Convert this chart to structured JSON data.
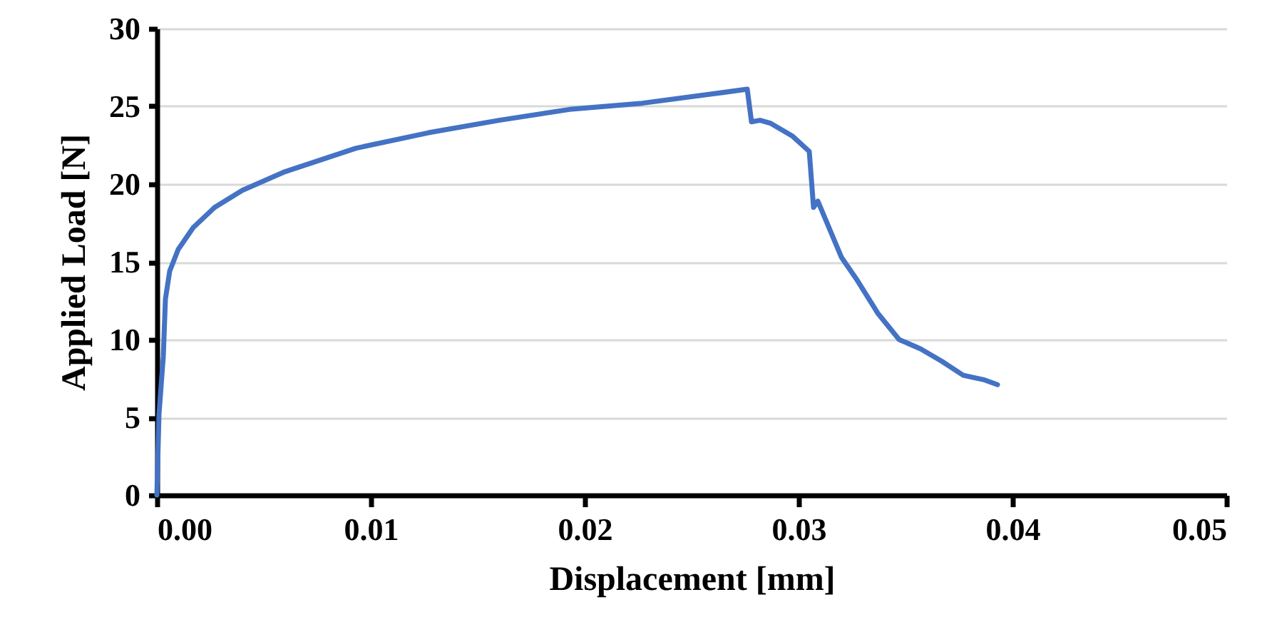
{
  "chart_data": {
    "type": "line",
    "xlabel": "Displacement [mm]",
    "ylabel": "Applied Load [N]",
    "xlim": [
      0,
      0.05
    ],
    "xticks": [
      {
        "value": 0,
        "label": "0.00"
      },
      {
        "value": 0.01,
        "label": "0.01"
      },
      {
        "value": 0.02,
        "label": "0.02"
      },
      {
        "value": 0.03,
        "label": "0.03"
      },
      {
        "value": 0.04,
        "label": "0.04"
      },
      {
        "value": 0.05,
        "label": "0.05"
      }
    ],
    "ylim": [
      0,
      30
    ],
    "yticks": [
      0,
      5,
      10,
      15,
      20,
      25,
      30
    ],
    "grid": "y",
    "marker": "none",
    "line_style": "solid",
    "x": [
      0,
      0.0001,
      0.0003,
      0.0004,
      0.0006,
      0.001,
      0.0017,
      0.0027,
      0.004,
      0.006,
      0.0093,
      0.0127,
      0.016,
      0.0193,
      0.0227,
      0.026,
      0.0276,
      0.0278,
      0.0282,
      0.0287,
      0.0297,
      0.0305,
      0.0307,
      0.0309,
      0.0313,
      0.032,
      0.0327,
      0.0337,
      0.0347,
      0.0357,
      0.0367,
      0.0377,
      0.0387,
      0.0393
    ],
    "series": [
      {
        "color": "#4472c4",
        "values": [
          0,
          5.2,
          8.9,
          12.6,
          14.4,
          15.8,
          17.2,
          18.5,
          19.6,
          20.8,
          22.3,
          23.3,
          24.1,
          24.8,
          25.2,
          25.8,
          26.1,
          24.0,
          24.1,
          23.9,
          23.1,
          22.1,
          18.5,
          18.9,
          17.6,
          15.3,
          13.9,
          11.7,
          10.0,
          9.4,
          8.6,
          7.7,
          7.4,
          7.1
        ]
      }
    ]
  }
}
